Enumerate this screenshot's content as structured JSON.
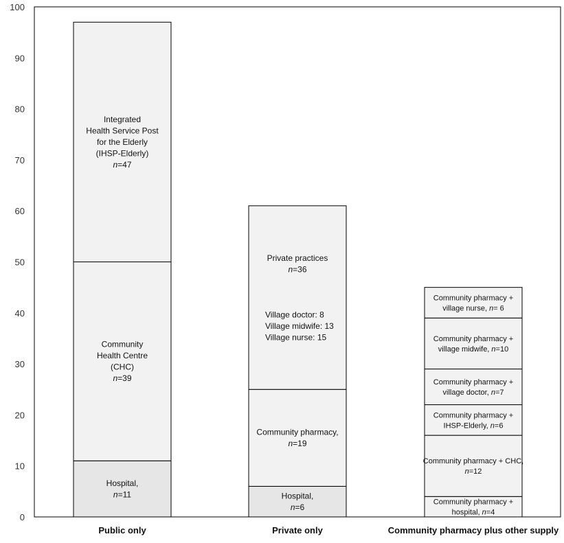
{
  "chart_data": {
    "type": "bar",
    "stacked": true,
    "ylim": [
      0,
      100
    ],
    "yticks": [
      0,
      10,
      20,
      30,
      40,
      50,
      60,
      70,
      80,
      90,
      100
    ],
    "grid": false,
    "categories": [
      "Public only",
      "Private only",
      "Community pharmacy plus other supply"
    ],
    "bars": [
      {
        "category": "Public only",
        "segments": [
          {
            "value": 11,
            "lines": [
              {
                "text": "Hospital,"
              },
              {
                "n": "11"
              }
            ],
            "fill": "#e6e6e6"
          },
          {
            "value": 39,
            "lines": [
              {
                "text": "Community"
              },
              {
                "text": "Health Centre"
              },
              {
                "text": "(CHC)"
              },
              {
                "n": "39"
              }
            ],
            "fill": "#f2f2f2"
          },
          {
            "value": 47,
            "lines": [
              {
                "text": "Integrated"
              },
              {
                "text": "Health Service Post"
              },
              {
                "text": "for the Elderly"
              },
              {
                "text": "(IHSP-Elderly)"
              },
              {
                "n": "47"
              }
            ],
            "fill": "#f2f2f2"
          }
        ]
      },
      {
        "category": "Private only",
        "segments": [
          {
            "value": 6,
            "lines": [
              {
                "text": "Hospital,"
              },
              {
                "n": "6"
              }
            ],
            "fill": "#e6e6e6"
          },
          {
            "value": 19,
            "lines": [
              {
                "text": "Community pharmacy,"
              },
              {
                "n": "19"
              }
            ],
            "fill": "#f2f2f2"
          },
          {
            "value": 36,
            "lines": [
              {
                "text": "Private practices"
              },
              {
                "n": "36"
              },
              {
                "text": ""
              },
              {
                "text": ""
              },
              {
                "text": ""
              },
              {
                "text": "Village doctor: 8",
                "align": "left"
              },
              {
                "text": "Village midwife: 13",
                "align": "left"
              },
              {
                "text": "Village nurse: 15",
                "align": "left"
              }
            ],
            "fill": "#f2f2f2"
          }
        ]
      },
      {
        "category": "Community pharmacy plus other supply",
        "small": true,
        "segments": [
          {
            "value": 4,
            "lines": [
              {
                "text": "Community pharmacy +"
              },
              {
                "text": "hospital, ",
                "n": "4"
              }
            ],
            "fill": "#f2f2f2"
          },
          {
            "value": 12,
            "lines": [
              {
                "text": "Community pharmacy + CHC,"
              },
              {
                "n": "12"
              }
            ],
            "fill": "#f2f2f2"
          },
          {
            "value": 6,
            "lines": [
              {
                "text": "Community pharmacy +"
              },
              {
                "text": "IHSP-Elderly, ",
                "n": "6"
              }
            ],
            "fill": "#f2f2f2"
          },
          {
            "value": 7,
            "lines": [
              {
                "text": "Community pharmacy +"
              },
              {
                "text": "village doctor, ",
                "n": "7"
              }
            ],
            "fill": "#f2f2f2"
          },
          {
            "value": 10,
            "lines": [
              {
                "text": "Community pharmacy +"
              },
              {
                "text": "village midwife, ",
                "n": "10"
              }
            ],
            "fill": "#f2f2f2"
          },
          {
            "value": 6,
            "lines": [
              {
                "text": "Community pharmacy +"
              },
              {
                "text": "village nurse,  ",
                "n": " 6"
              }
            ],
            "fill": "#f2f2f2"
          }
        ]
      }
    ]
  }
}
